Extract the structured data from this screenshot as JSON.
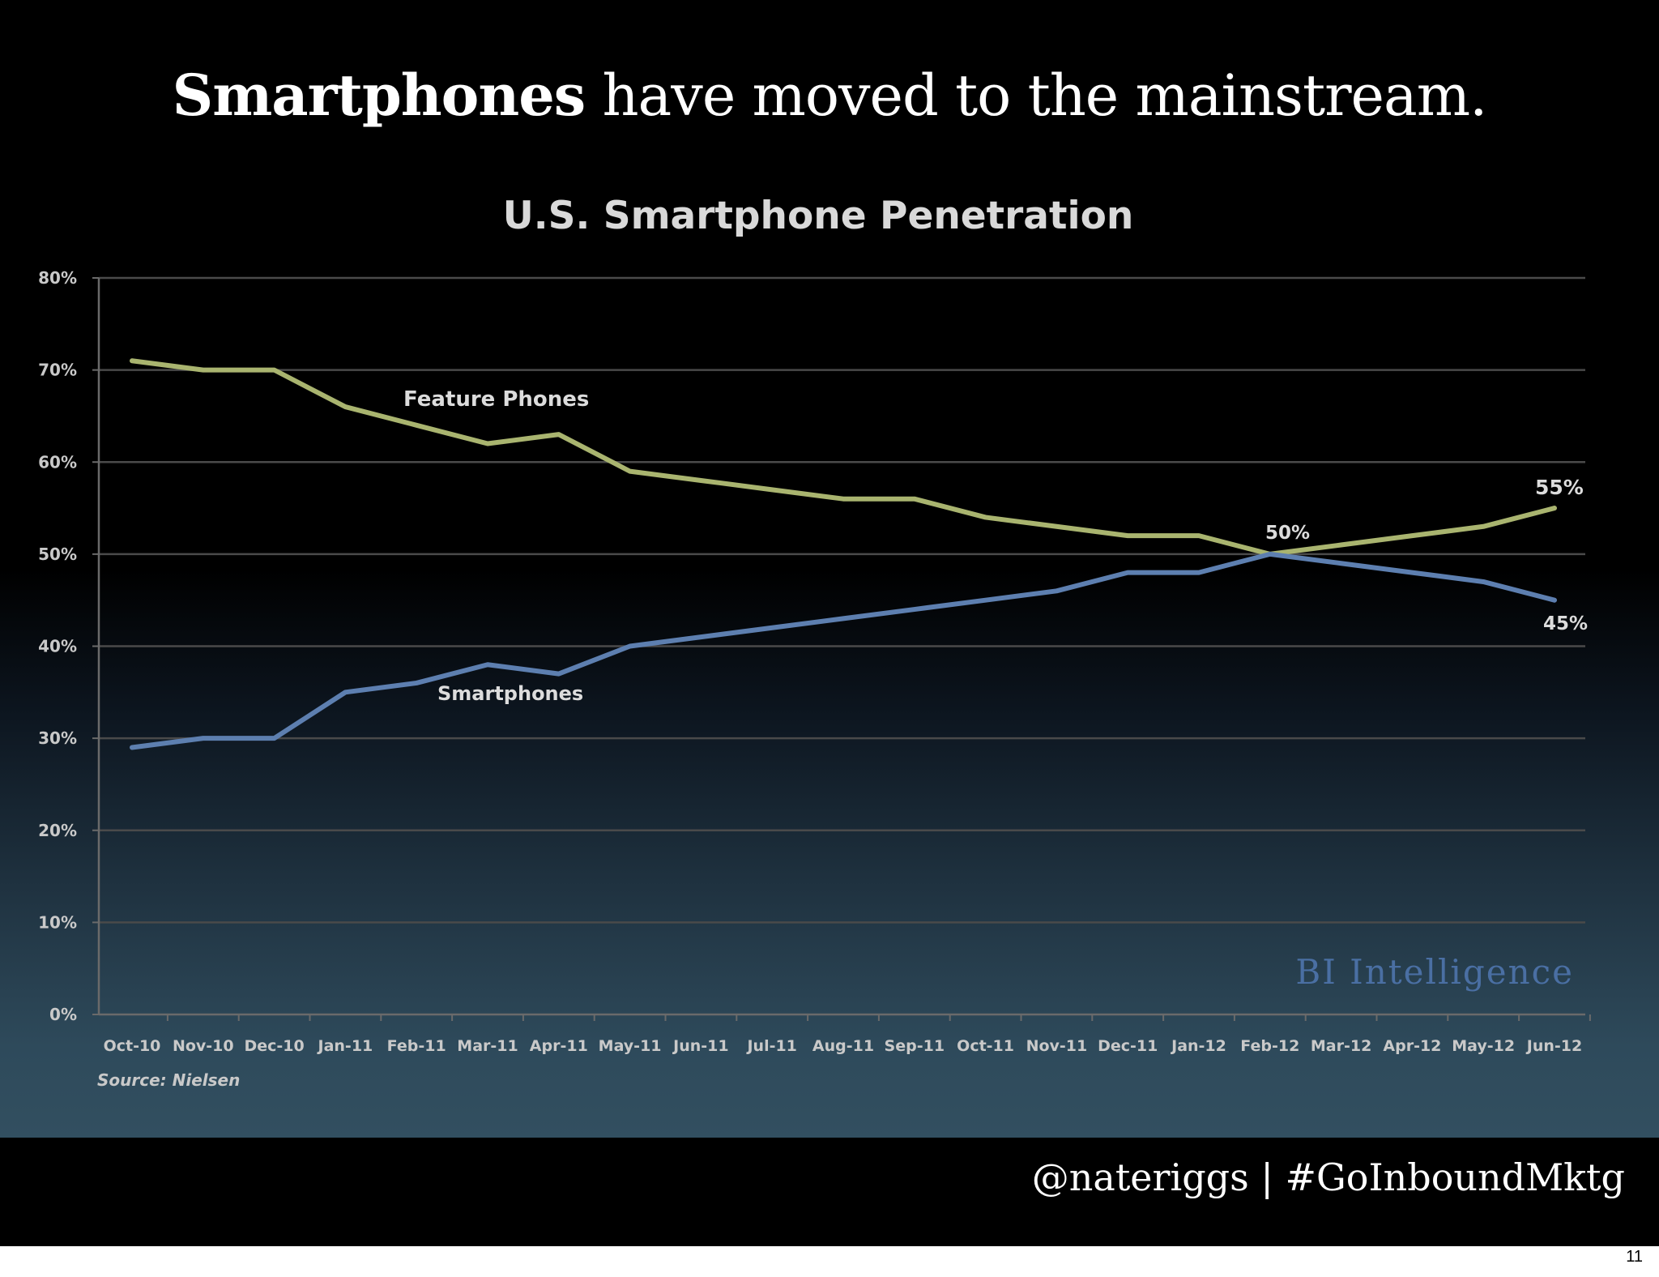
{
  "slide": {
    "headline_bold": "Smartphones",
    "headline_rest": " have moved to the mainstream.",
    "footer": "@nateriggs | #GoInboundMktg",
    "page_number": "11"
  },
  "chart_data": {
    "type": "line",
    "title": "U.S. Smartphone Penetration",
    "source": "Source: Nielsen",
    "watermark": "BI Intelligence",
    "ylim": [
      0,
      80
    ],
    "yticks": [
      "0%",
      "10%",
      "20%",
      "30%",
      "40%",
      "50%",
      "60%",
      "70%",
      "80%"
    ],
    "categories": [
      "Oct-10",
      "Nov-10",
      "Dec-10",
      "Jan-11",
      "Feb-11",
      "Mar-11",
      "Apr-11",
      "May-11",
      "Jun-11",
      "Jul-11",
      "Aug-11",
      "Sep-11",
      "Oct-11",
      "Nov-11",
      "Dec-11",
      "Jan-12",
      "Feb-12",
      "Mar-12",
      "Apr-12",
      "May-12",
      "Jun-12"
    ],
    "grid": true,
    "series": [
      {
        "name": "Feature Phones",
        "color": "#a9b46f",
        "values": [
          71,
          70,
          70,
          66,
          64,
          62,
          63,
          59,
          58,
          57,
          56,
          56,
          54,
          53,
          52,
          52,
          50,
          51,
          52,
          53,
          55
        ]
      },
      {
        "name": "Smartphones",
        "color": "#5d7fb0",
        "values": [
          29,
          30,
          30,
          35,
          36,
          38,
          37,
          40,
          41,
          42,
          43,
          44,
          45,
          46,
          48,
          48,
          50,
          49,
          48,
          47,
          45
        ]
      }
    ],
    "annotations": [
      "50%",
      "55%",
      "45%"
    ]
  }
}
